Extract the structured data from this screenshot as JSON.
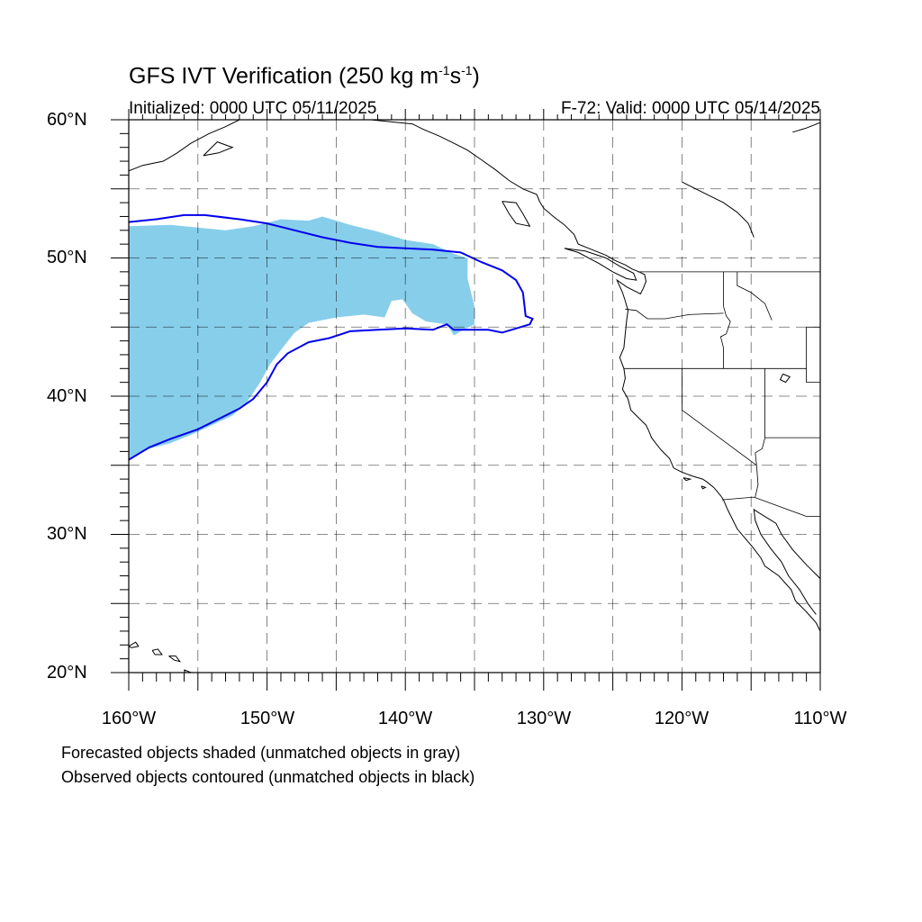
{
  "title": {
    "text": "GFS IVT Verification (250 kg m",
    "exp1": "-1",
    "mid": "s",
    "exp2": "-1",
    "end": ")"
  },
  "init_label": "Initialized: 0000 UTC 05/11/2025",
  "valid_label": "F-72: Valid: 0000 UTC 05/14/2025",
  "lat_labels": [
    "60°N",
    "50°N",
    "40°N",
    "30°N",
    "20°N"
  ],
  "lon_labels": [
    "160°W",
    "150°W",
    "140°W",
    "130°W",
    "120°W",
    "110°W"
  ],
  "notes": [
    "Forecasted objects shaded (unmatched objects in gray)",
    "Observed objects contoured (unmatched objects in black)"
  ],
  "map_extent": {
    "lon": [
      -160,
      -110
    ],
    "lat": [
      20,
      60
    ]
  },
  "colors": {
    "forecast_fill": "#87ceeb",
    "observed_contour": "#0000ee",
    "coastline": "#000000",
    "grid": "#000000"
  },
  "forecast_object_lonlat": [
    [
      -160,
      52.3
    ],
    [
      -157,
      52.4
    ],
    [
      -155,
      52.2
    ],
    [
      -153,
      52.0
    ],
    [
      -151,
      52.3
    ],
    [
      -149,
      52.8
    ],
    [
      -147,
      52.7
    ],
    [
      -146,
      53.0
    ],
    [
      -144,
      52.4
    ],
    [
      -142,
      51.9
    ],
    [
      -140,
      51.3
    ],
    [
      -138,
      51.0
    ],
    [
      -136.5,
      50.3
    ],
    [
      -135.5,
      50.0
    ],
    [
      -135.5,
      48.5
    ],
    [
      -135,
      46.5
    ],
    [
      -135,
      45.2
    ],
    [
      -136,
      44.7
    ],
    [
      -136.5,
      44.4
    ],
    [
      -137,
      45.2
    ],
    [
      -138.5,
      45.4
    ],
    [
      -139.5,
      46.0
    ],
    [
      -140.2,
      47.0
    ],
    [
      -141,
      46.9
    ],
    [
      -141.5,
      45.7
    ],
    [
      -143,
      45.9
    ],
    [
      -145,
      45.7
    ],
    [
      -147,
      45.3
    ],
    [
      -148,
      44.6
    ],
    [
      -148.8,
      43.6
    ],
    [
      -149.8,
      42.3
    ],
    [
      -150.5,
      41.0
    ],
    [
      -151.5,
      39.5
    ],
    [
      -152.5,
      38.6
    ],
    [
      -154,
      37.9
    ],
    [
      -155.5,
      37.2
    ],
    [
      -157,
      36.6
    ],
    [
      -158.5,
      36.2
    ],
    [
      -160,
      35.5
    ]
  ],
  "observed_contour_lonlat": [
    [
      -160,
      52.6
    ],
    [
      -158,
      52.8
    ],
    [
      -156,
      53.1
    ],
    [
      -154.5,
      53.1
    ],
    [
      -152,
      52.8
    ],
    [
      -150,
      52.5
    ],
    [
      -148,
      52.0
    ],
    [
      -146,
      51.5
    ],
    [
      -144,
      51.1
    ],
    [
      -142,
      50.8
    ],
    [
      -140,
      50.7
    ],
    [
      -138,
      50.6
    ],
    [
      -136,
      50.4
    ],
    [
      -134.5,
      49.7
    ],
    [
      -133,
      49.1
    ],
    [
      -132,
      48.4
    ],
    [
      -131.5,
      47.5
    ],
    [
      -131.3,
      45.8
    ],
    [
      -130.8,
      45.6
    ],
    [
      -131,
      45.2
    ],
    [
      -132,
      44.9
    ],
    [
      -133,
      44.6
    ],
    [
      -134,
      44.8
    ],
    [
      -135.5,
      44.8
    ],
    [
      -136.5,
      44.8
    ],
    [
      -137,
      45.2
    ],
    [
      -138,
      44.8
    ],
    [
      -140,
      44.9
    ],
    [
      -142,
      44.8
    ],
    [
      -144,
      44.7
    ],
    [
      -145.5,
      44.2
    ],
    [
      -147,
      43.9
    ],
    [
      -148.5,
      43.1
    ],
    [
      -149.3,
      42.3
    ],
    [
      -150,
      41.0
    ],
    [
      -151,
      39.8
    ],
    [
      -152,
      39.1
    ],
    [
      -153,
      38.6
    ],
    [
      -155,
      37.6
    ],
    [
      -157,
      36.9
    ],
    [
      -158.5,
      36.3
    ],
    [
      -160,
      35.4
    ]
  ],
  "coastlines_lonlat": [
    [
      [
        -160,
        56.3
      ],
      [
        -159,
        56.7
      ],
      [
        -157.5,
        57.0
      ],
      [
        -156.5,
        57.6
      ],
      [
        -155.5,
        58.3
      ],
      [
        -154.2,
        59.0
      ],
      [
        -153,
        59.5
      ],
      [
        -152,
        60.0
      ]
    ],
    [
      [
        -154.6,
        57.4
      ],
      [
        -153.5,
        57.6
      ],
      [
        -152.5,
        58.0
      ],
      [
        -153.6,
        58.4
      ],
      [
        -154.6,
        57.4
      ]
    ],
    [
      [
        -149,
        60
      ],
      [
        -147,
        60
      ],
      [
        -145,
        60
      ],
      [
        -142.5,
        60
      ],
      [
        -140.5,
        59.8
      ],
      [
        -139.5,
        59.7
      ],
      [
        -138.7,
        59.3
      ],
      [
        -137.5,
        58.8
      ],
      [
        -136.5,
        58.3
      ],
      [
        -135.5,
        57.8
      ],
      [
        -134.5,
        57.1
      ],
      [
        -133.5,
        56.4
      ],
      [
        -132.5,
        55.6
      ],
      [
        -131.5,
        55.0
      ],
      [
        -130.5,
        54.6
      ],
      [
        -130.3,
        54.1
      ],
      [
        -130.0,
        53.6
      ],
      [
        -129.3,
        53.0
      ],
      [
        -128.5,
        52.4
      ],
      [
        -127.8,
        51.7
      ],
      [
        -127.5,
        51.0
      ],
      [
        -126.5,
        50.6
      ],
      [
        -125.5,
        50.2
      ],
      [
        -124.8,
        49.8
      ],
      [
        -124.1,
        49.5
      ],
      [
        -123.6,
        49.2
      ],
      [
        -123.1,
        49.0
      ],
      [
        -122.7,
        48.8
      ],
      [
        -122.6,
        48.3
      ],
      [
        -122.8,
        47.8
      ],
      [
        -123.0,
        47.4
      ],
      [
        -124.0,
        47.9
      ],
      [
        -124.7,
        48.4
      ],
      [
        -124.3,
        47.5
      ],
      [
        -124.1,
        46.9
      ],
      [
        -123.9,
        46.2
      ],
      [
        -124.0,
        45.5
      ],
      [
        -124.1,
        44.5
      ],
      [
        -124.2,
        43.5
      ],
      [
        -124.5,
        42.8
      ],
      [
        -124.2,
        42.0
      ],
      [
        -124.1,
        41.3
      ],
      [
        -124.3,
        40.5
      ],
      [
        -123.9,
        39.8
      ],
      [
        -123.7,
        39.0
      ],
      [
        -123.2,
        38.5
      ],
      [
        -122.6,
        37.9
      ],
      [
        -122.4,
        37.5
      ],
      [
        -122.2,
        37.0
      ],
      [
        -121.9,
        36.6
      ],
      [
        -121.5,
        36.1
      ],
      [
        -120.9,
        35.5
      ],
      [
        -120.6,
        34.8
      ],
      [
        -120.0,
        34.5
      ],
      [
        -119.2,
        34.2
      ],
      [
        -118.5,
        34.0
      ],
      [
        -118.2,
        33.8
      ],
      [
        -117.7,
        33.4
      ],
      [
        -117.2,
        32.8
      ],
      [
        -117.0,
        32.5
      ],
      [
        -116.7,
        31.8
      ],
      [
        -116.3,
        31.0
      ],
      [
        -116.0,
        30.4
      ],
      [
        -115.5,
        29.8
      ],
      [
        -114.9,
        29.1
      ],
      [
        -114.3,
        28.3
      ],
      [
        -114.0,
        27.7
      ],
      [
        -113.0,
        27.0
      ],
      [
        -112.1,
        26.0
      ],
      [
        -111.8,
        25.2
      ],
      [
        -111.0,
        24.4
      ],
      [
        -110.3,
        23.6
      ],
      [
        -110.0,
        23.0
      ]
    ],
    [
      [
        -110,
        26.8
      ],
      [
        -111.0,
        27.8
      ],
      [
        -112.0,
        28.9
      ],
      [
        -112.8,
        30.0
      ],
      [
        -113.2,
        30.8
      ],
      [
        -114.5,
        31.6
      ],
      [
        -114.8,
        31.8
      ],
      [
        -114.7,
        31.0
      ],
      [
        -114.3,
        30.0
      ],
      [
        -113.6,
        29.0
      ],
      [
        -112.8,
        28.0
      ],
      [
        -112.3,
        27.0
      ],
      [
        -111.5,
        26.0
      ],
      [
        -110.9,
        25.0
      ],
      [
        -110.3,
        24.2
      ]
    ],
    [
      [
        -128.5,
        50.7
      ],
      [
        -127.5,
        50.4
      ],
      [
        -126.0,
        49.6
      ],
      [
        -125.0,
        49.0
      ],
      [
        -124.0,
        48.5
      ],
      [
        -123.3,
        48.4
      ],
      [
        -123.5,
        48.9
      ],
      [
        -124.5,
        49.4
      ],
      [
        -125.5,
        50.0
      ],
      [
        -127.0,
        50.5
      ],
      [
        -128.5,
        50.7
      ]
    ],
    [
      [
        -133,
        54.1
      ],
      [
        -132,
        54.0
      ],
      [
        -131.5,
        53.2
      ],
      [
        -131.0,
        52.3
      ],
      [
        -132.0,
        52.5
      ],
      [
        -132.5,
        53.2
      ],
      [
        -133,
        54.1
      ]
    ],
    [
      [
        -160,
        21.9
      ],
      [
        -159.5,
        22.2
      ],
      [
        -159.3,
        21.9
      ],
      [
        -159.8,
        21.8
      ],
      [
        -160,
        21.9
      ]
    ],
    [
      [
        -158.3,
        21.6
      ],
      [
        -157.9,
        21.7
      ],
      [
        -157.6,
        21.3
      ],
      [
        -158.1,
        21.3
      ],
      [
        -158.3,
        21.6
      ]
    ],
    [
      [
        -157.1,
        21.2
      ],
      [
        -156.6,
        21.2
      ],
      [
        -156.3,
        20.8
      ],
      [
        -156.7,
        20.9
      ],
      [
        -157.1,
        21.2
      ]
    ],
    [
      [
        -156.0,
        20.2
      ],
      [
        -155.5,
        20.0
      ],
      [
        -155.0,
        19.7
      ],
      [
        -155.6,
        19.3
      ],
      [
        -156.0,
        20.2
      ]
    ],
    [
      [
        -118.6,
        33.5
      ],
      [
        -118.3,
        33.4
      ],
      [
        -118.5,
        33.3
      ],
      [
        -118.6,
        33.5
      ]
    ],
    [
      [
        -119.9,
        34.1
      ],
      [
        -119.4,
        34.0
      ],
      [
        -119.7,
        33.9
      ],
      [
        -119.9,
        34.1
      ]
    ],
    [
      [
        -110,
        60.0
      ],
      [
        -110,
        59.8
      ],
      [
        -111,
        59.4
      ],
      [
        -112,
        59.1
      ]
    ],
    [
      [
        -120,
        55.5
      ],
      [
        -119,
        55.0
      ],
      [
        -118,
        54.5
      ],
      [
        -117,
        54.0
      ],
      [
        -116,
        53.3
      ],
      [
        -115.2,
        52.5
      ],
      [
        -114.8,
        51.5
      ]
    ],
    [
      [
        -112.7,
        41.6
      ],
      [
        -112.2,
        41.4
      ],
      [
        -112.5,
        41.0
      ],
      [
        -112.9,
        41.2
      ],
      [
        -112.7,
        41.6
      ]
    ]
  ],
  "borders_lonlat": [
    [
      [
        -123.2,
        49.0
      ],
      [
        -110,
        49.0
      ]
    ],
    [
      [
        -124.2,
        42.0
      ],
      [
        -111,
        42.0
      ]
    ],
    [
      [
        -120,
        42.0
      ],
      [
        -120,
        39.0
      ],
      [
        -114.6,
        35.0
      ]
    ],
    [
      [
        -117.0,
        46.5
      ],
      [
        -116.8,
        45.8
      ],
      [
        -116.5,
        45.4
      ],
      [
        -116.8,
        44.5
      ],
      [
        -117.2,
        44.3
      ],
      [
        -117.0,
        43.5
      ],
      [
        -117.0,
        42.0
      ]
    ],
    [
      [
        -117.0,
        49.0
      ],
      [
        -117.0,
        46.5
      ]
    ],
    [
      [
        -116,
        49.0
      ],
      [
        -116,
        48.0
      ],
      [
        -115,
        47.5
      ],
      [
        -114,
        46.7
      ],
      [
        -113.5,
        45.5
      ]
    ],
    [
      [
        -124.1,
        46.3
      ],
      [
        -123.3,
        46.2
      ],
      [
        -122.5,
        45.6
      ],
      [
        -121.2,
        45.6
      ],
      [
        -119.5,
        45.9
      ],
      [
        -117.0,
        46.0
      ]
    ],
    [
      [
        -114.0,
        42.0
      ],
      [
        -114.0,
        37.0
      ],
      [
        -114.2,
        36.2
      ],
      [
        -114.7,
        35.9
      ],
      [
        -114.6,
        35.0
      ]
    ],
    [
      [
        -111,
        45.0
      ],
      [
        -110,
        45.0
      ]
    ],
    [
      [
        -111,
        45.0
      ],
      [
        -111,
        41.0
      ],
      [
        -110,
        41.0
      ]
    ],
    [
      [
        -114.0,
        37.0
      ],
      [
        -110,
        37.0
      ]
    ],
    [
      [
        -117.1,
        32.5
      ],
      [
        -114.8,
        32.7
      ],
      [
        -111.0,
        31.3
      ],
      [
        -110,
        31.3
      ]
    ],
    [
      [
        -114.6,
        35.0
      ],
      [
        -114.5,
        33.6
      ],
      [
        -114.7,
        32.7
      ]
    ]
  ]
}
